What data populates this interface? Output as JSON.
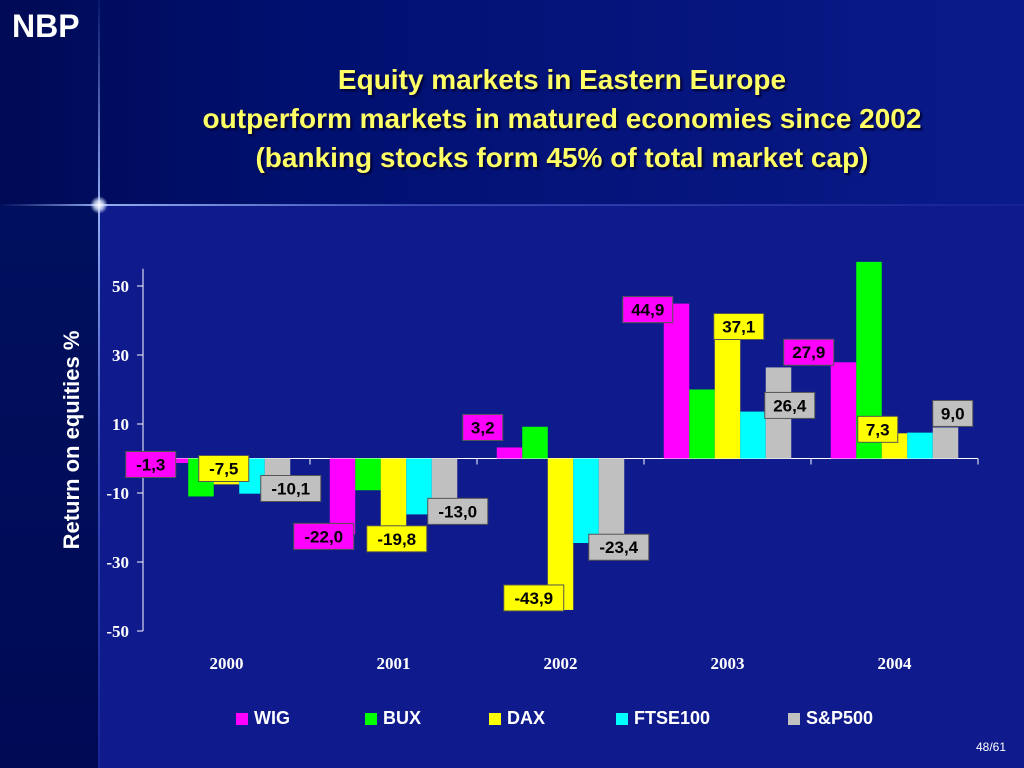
{
  "logo": "NBP",
  "title": {
    "line1": "Equity markets in Eastern Europe",
    "line2": "outperform markets in matured economies since 2002",
    "line3": "(banking stocks form 45% of total market cap)"
  },
  "page_number": "48/61",
  "chart_data": {
    "type": "bar",
    "ylabel": "Return on equities %",
    "ylim": [
      -50,
      55
    ],
    "yticks": [
      50,
      30,
      10,
      -10,
      -30,
      -50
    ],
    "categories": [
      "2000",
      "2001",
      "2002",
      "2003",
      "2004"
    ],
    "series": [
      {
        "name": "WIG",
        "color": "#ff00ff",
        "values": [
          -1.3,
          -22.0,
          3.2,
          44.9,
          27.9
        ],
        "labels": [
          "-1,3",
          "-22,0",
          "3,2",
          "44,9",
          "27,9"
        ]
      },
      {
        "name": "BUX",
        "color": "#00ff00",
        "values": [
          -11.0,
          -9.2,
          9.2,
          20.0,
          57.0
        ],
        "labels": [
          "",
          "",
          "",
          "",
          ""
        ]
      },
      {
        "name": "DAX",
        "color": "#ffff00",
        "values": [
          -7.5,
          -19.8,
          -43.9,
          37.1,
          7.3
        ],
        "labels": [
          "-7,5",
          "-19,8",
          "-43,9",
          "37,1",
          "7,3"
        ]
      },
      {
        "name": "FTSE100",
        "color": "#00ffff",
        "values": [
          -10.2,
          -16.2,
          -24.5,
          13.6,
          7.5
        ],
        "labels": [
          "",
          "",
          "",
          "",
          ""
        ]
      },
      {
        "name": "S&P500",
        "color": "#c0c0c0",
        "values": [
          -10.1,
          -13.0,
          -23.4,
          26.4,
          9.0
        ],
        "labels": [
          "-10,1",
          "-13,0",
          "-23,4",
          "26,4",
          "9,0"
        ]
      }
    ],
    "legend_position": "bottom",
    "grid": false
  }
}
